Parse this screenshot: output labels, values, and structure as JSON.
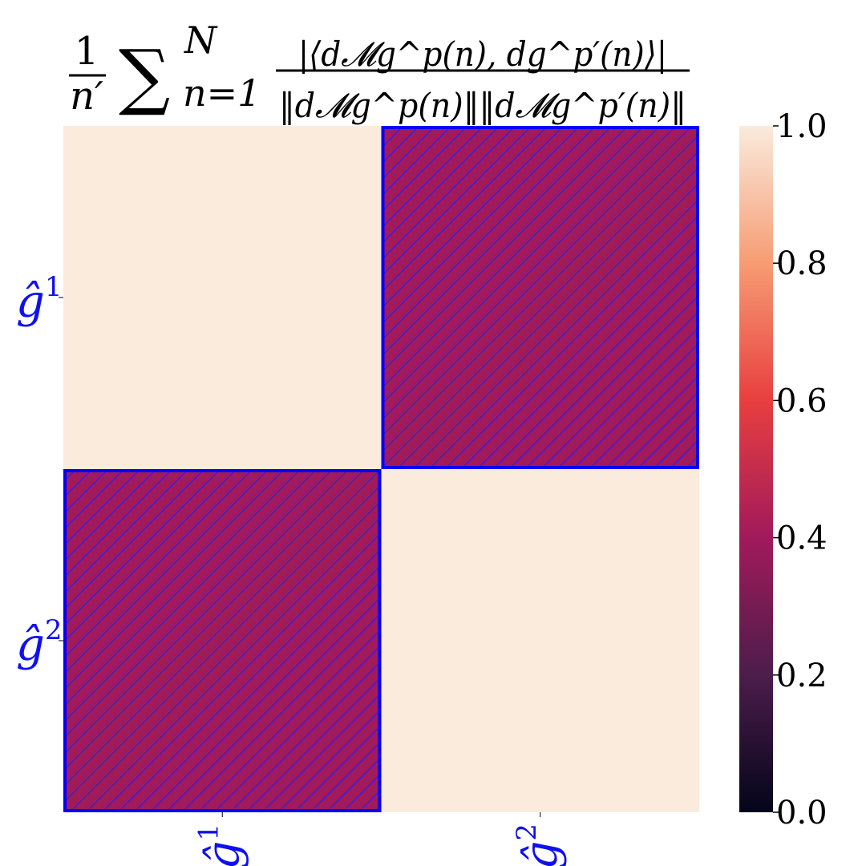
{
  "chart_data": {
    "type": "heatmap",
    "title": {
      "frac1_num": "1",
      "frac1_den": "n′",
      "sigma": "∑",
      "sum_upper": "N",
      "sum_lower": "n=1",
      "numerator": "|⟨d𝓜g^p(n), dg^p′(n)⟩|",
      "denominator": "‖d𝓜g^p(n)‖‖d𝓜g^p′(n)‖"
    },
    "x_labels": [
      {
        "base": "ĝ",
        "sup": "1"
      },
      {
        "base": "ĝ",
        "sup": "2"
      }
    ],
    "y_labels": [
      {
        "base": "ĝ",
        "sup": "1"
      },
      {
        "base": "ĝ",
        "sup": "2"
      }
    ],
    "values": [
      [
        1.0,
        0.4
      ],
      [
        0.4,
        1.0
      ]
    ],
    "highlighted_cells": [
      [
        0,
        1
      ],
      [
        1,
        0
      ]
    ],
    "colorbar": {
      "min": 0.0,
      "max": 1.0,
      "ticks": [
        "0.0",
        "0.2",
        "0.4",
        "0.6",
        "0.8",
        "1.0"
      ]
    },
    "colors": {
      "label_color": "#1010ee",
      "highlight_border": "#0000ff",
      "hatch_color": "#2a1ef0",
      "colormap": [
        "#03051a",
        "#4c1d4b",
        "#a11a5b",
        "#e83f3f",
        "#f69c73",
        "#faebdd"
      ]
    }
  }
}
